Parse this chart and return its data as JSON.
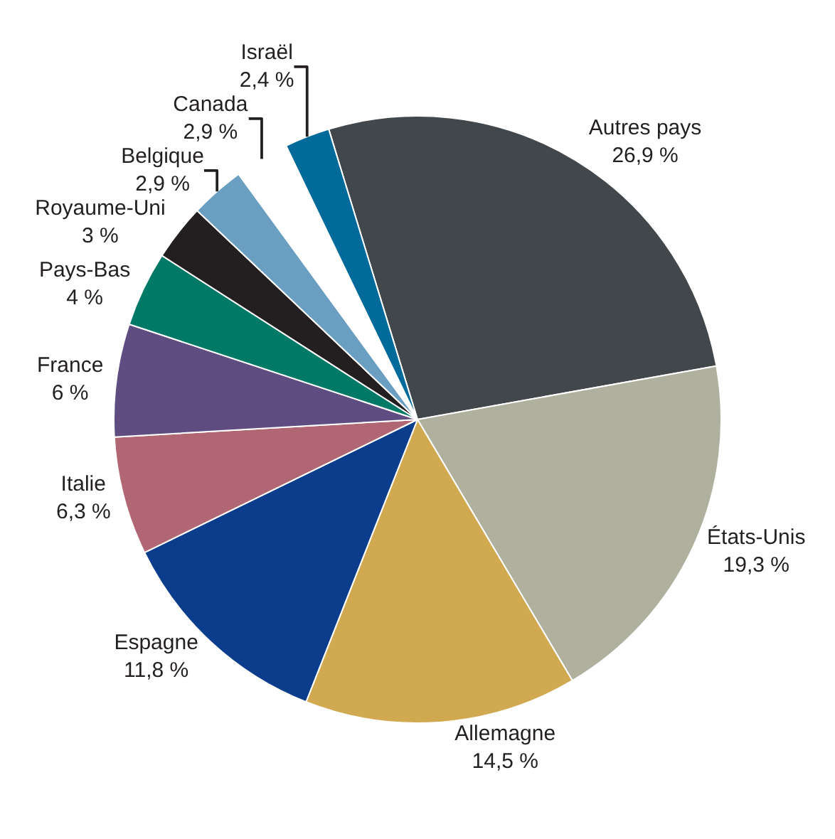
{
  "chart_data": {
    "type": "pie",
    "categories": [
      "Autres pays",
      "États-Unis",
      "Allemagne",
      "Espagne",
      "Italie",
      "France",
      "Pays-Bas",
      "Royaume-Uni",
      "Belgique",
      "Canada",
      "Israël"
    ],
    "values": [
      26.9,
      19.3,
      14.5,
      11.8,
      6.3,
      6,
      4,
      3,
      2.9,
      2.9,
      2.4
    ],
    "value_labels": [
      "26,9 %",
      "19,3 %",
      "14,5 %",
      "11,8 %",
      "6,3 %",
      "6 %",
      "4 %",
      "3 %",
      "2,9 %",
      "2,9 %",
      "2,4 %"
    ],
    "colors": [
      "#41474a",
      "#b0b09f",
      "#d1a951",
      "#0b3d8c",
      "#b06673",
      "#5f4c80",
      "#007a66",
      "#231f20",
      "#6b9fc2",
      "#ffffff",
      "#006a9a"
    ],
    "legend": false
  }
}
